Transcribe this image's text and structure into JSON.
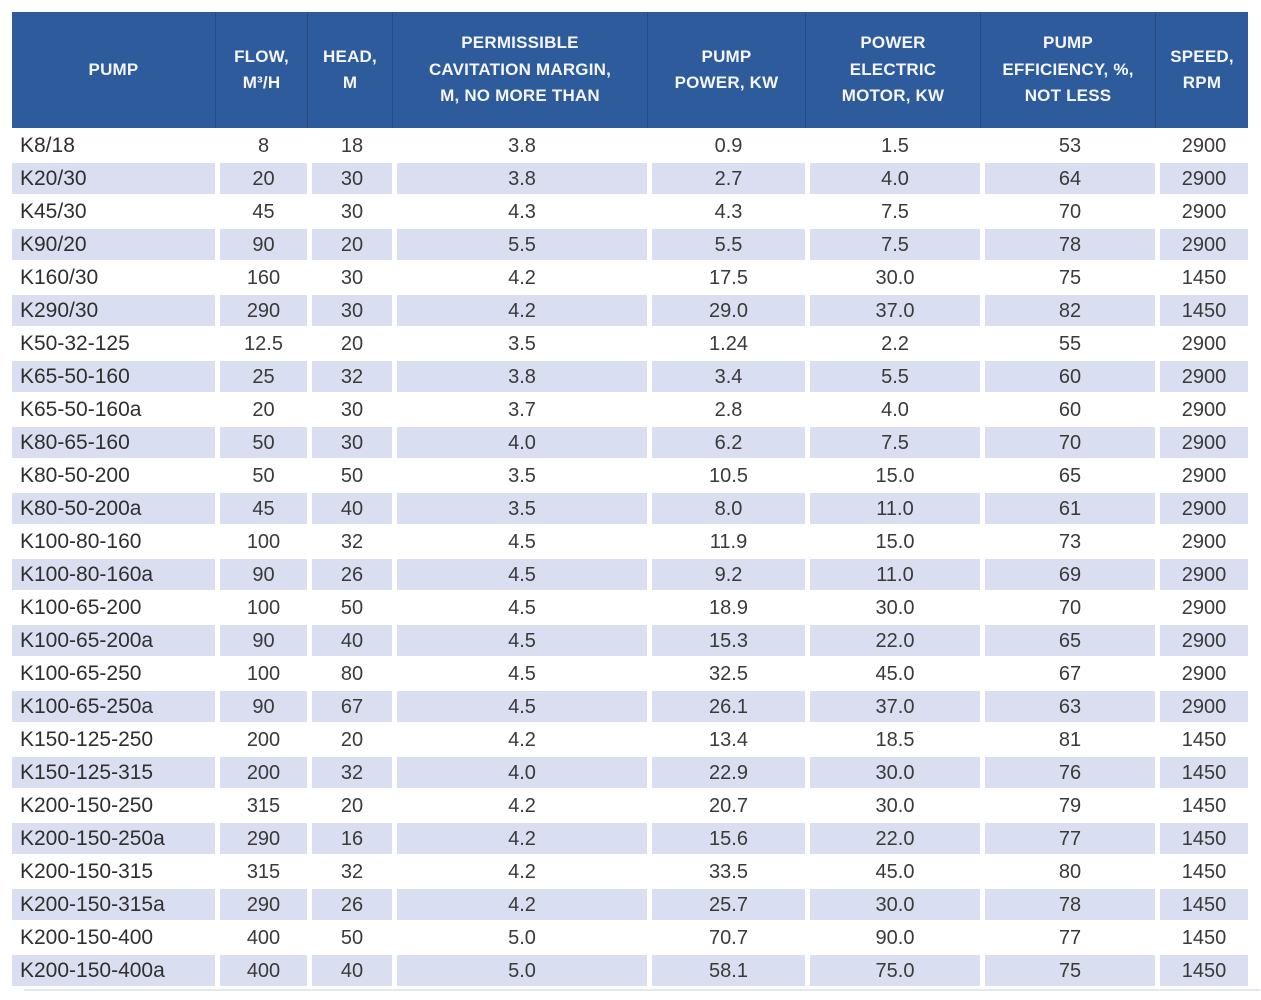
{
  "colors": {
    "header_bg": "#2e5b9c",
    "header_text": "#f4f6fb",
    "row_alt_bg": "#d9def0",
    "row_bg": "#ffffff",
    "body_text": "#3a3a3a"
  },
  "chart_data": {
    "type": "table",
    "title": "Pump specifications table",
    "columns": [
      "PUMP",
      "FLOW,\nM³/H",
      "HEAD,\nM",
      "PERMISSIBLE\nCAVITATION MARGIN,\nM, NO MORE THAN",
      "PUMP\nPOWER, KW",
      "POWER\nELECTRIC\nMOTOR, KW",
      "PUMP\nEFFICIENCY, %,\nNOT LESS",
      "SPEED,\nRPM"
    ],
    "rows": [
      [
        "K8/18",
        "8",
        "18",
        "3.8",
        "0.9",
        "1.5",
        "53",
        "2900"
      ],
      [
        "K20/30",
        "20",
        "30",
        "3.8",
        "2.7",
        "4.0",
        "64",
        "2900"
      ],
      [
        "K45/30",
        "45",
        "30",
        "4.3",
        "4.3",
        "7.5",
        "70",
        "2900"
      ],
      [
        "K90/20",
        "90",
        "20",
        "5.5",
        "5.5",
        "7.5",
        "78",
        "2900"
      ],
      [
        "K160/30",
        "160",
        "30",
        "4.2",
        "17.5",
        "30.0",
        "75",
        "1450"
      ],
      [
        "K290/30",
        "290",
        "30",
        "4.2",
        "29.0",
        "37.0",
        "82",
        "1450"
      ],
      [
        "K50-32-125",
        "12.5",
        "20",
        "3.5",
        "1.24",
        "2.2",
        "55",
        "2900"
      ],
      [
        "K65-50-160",
        "25",
        "32",
        "3.8",
        "3.4",
        "5.5",
        "60",
        "2900"
      ],
      [
        "K65-50-160a",
        "20",
        "30",
        "3.7",
        "2.8",
        "4.0",
        "60",
        "2900"
      ],
      [
        "K80-65-160",
        "50",
        "30",
        "4.0",
        "6.2",
        "7.5",
        "70",
        "2900"
      ],
      [
        "K80-50-200",
        "50",
        "50",
        "3.5",
        "10.5",
        "15.0",
        "65",
        "2900"
      ],
      [
        "K80-50-200a",
        "45",
        "40",
        "3.5",
        "8.0",
        "11.0",
        "61",
        "2900"
      ],
      [
        "K100-80-160",
        "100",
        "32",
        "4.5",
        "11.9",
        "15.0",
        "73",
        "2900"
      ],
      [
        "K100-80-160a",
        "90",
        "26",
        "4.5",
        "9.2",
        "11.0",
        "69",
        "2900"
      ],
      [
        "K100-65-200",
        "100",
        "50",
        "4.5",
        "18.9",
        "30.0",
        "70",
        "2900"
      ],
      [
        "K100-65-200a",
        "90",
        "40",
        "4.5",
        "15.3",
        "22.0",
        "65",
        "2900"
      ],
      [
        "K100-65-250",
        "100",
        "80",
        "4.5",
        "32.5",
        "45.0",
        "67",
        "2900"
      ],
      [
        "K100-65-250a",
        "90",
        "67",
        "4.5",
        "26.1",
        "37.0",
        "63",
        "2900"
      ],
      [
        "K150-125-250",
        "200",
        "20",
        "4.2",
        "13.4",
        "18.5",
        "81",
        "1450"
      ],
      [
        "K150-125-315",
        "200",
        "32",
        "4.0",
        "22.9",
        "30.0",
        "76",
        "1450"
      ],
      [
        "K200-150-250",
        "315",
        "20",
        "4.2",
        "20.7",
        "30.0",
        "79",
        "1450"
      ],
      [
        "K200-150-250a",
        "290",
        "16",
        "4.2",
        "15.6",
        "22.0",
        "77",
        "1450"
      ],
      [
        "K200-150-315",
        "315",
        "32",
        "4.2",
        "33.5",
        "45.0",
        "80",
        "1450"
      ],
      [
        "K200-150-315a",
        "290",
        "26",
        "4.2",
        "25.7",
        "30.0",
        "78",
        "1450"
      ],
      [
        "K200-150-400",
        "400",
        "50",
        "5.0",
        "70.7",
        "90.0",
        "77",
        "1450"
      ],
      [
        "K200-150-400a",
        "400",
        "40",
        "5.0",
        "58.1",
        "75.0",
        "75",
        "1450"
      ]
    ]
  }
}
